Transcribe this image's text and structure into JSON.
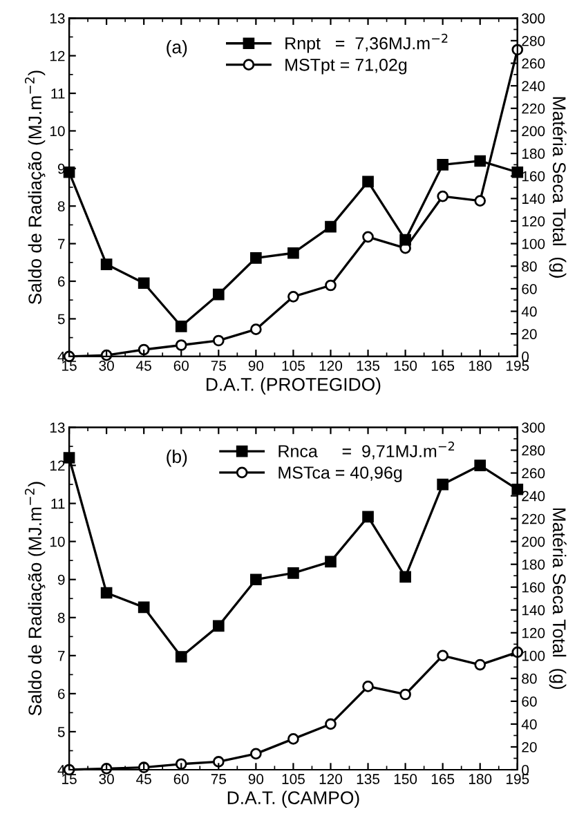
{
  "chart_data": [
    {
      "type": "line",
      "xlabel": "D.A.T. (PROTEGIDO)",
      "ylabel": "Saldo de Radiação (MJ.m$^{−2}$)",
      "y2label": "Matéria Seca Total  (g)",
      "annotations": [
        "(a)"
      ],
      "x": [
        15,
        30,
        45,
        60,
        75,
        90,
        105,
        120,
        135,
        150,
        165,
        180,
        195
      ],
      "series": [
        {
          "name": "Rnpt   =  7,36MJ.m$^{−2}$",
          "color": "#000000",
          "marker": "square",
          "values": [
            8.9,
            6.45,
            5.95,
            4.8,
            5.65,
            6.62,
            6.75,
            7.45,
            8.65,
            7.1,
            9.1,
            9.2,
            8.9
          ]
        },
        {
          "name": "MSTpt = 71,02g",
          "color": "#000000",
          "marker": "circle",
          "axis": "y2",
          "values": [
            0,
            1,
            6,
            10,
            14,
            24,
            53,
            63,
            106,
            96,
            142,
            138,
            272
          ]
        }
      ],
      "xlim": [
        15,
        195
      ],
      "xticks": [
        15,
        30,
        45,
        60,
        75,
        90,
        105,
        120,
        135,
        150,
        165,
        180,
        195
      ],
      "ylim": [
        4,
        13
      ],
      "yticks": [
        4,
        5,
        6,
        7,
        8,
        9,
        10,
        11,
        12,
        13
      ],
      "y2lim": [
        0,
        300
      ],
      "y2ticks": [
        0,
        20,
        40,
        60,
        80,
        100,
        120,
        140,
        160,
        180,
        200,
        220,
        240,
        260,
        280,
        300
      ],
      "legend": "top",
      "grid": false,
      "line_style": "solid"
    },
    {
      "type": "line",
      "xlabel": "D.A.T. (CAMPO)",
      "ylabel": "Saldo de Radiação (MJ.m$^{−2}$)",
      "y2label": "Matéria Seca Total  (g)",
      "annotations": [
        "(b)"
      ],
      "x": [
        15,
        30,
        45,
        60,
        75,
        90,
        105,
        120,
        135,
        150,
        165,
        180,
        195
      ],
      "series": [
        {
          "name": "Rnca     =  9,71MJ.m$^{−2}$",
          "color": "#000000",
          "marker": "square",
          "values": [
            12.2,
            8.65,
            8.27,
            6.97,
            7.78,
            9.0,
            9.17,
            9.47,
            10.65,
            9.07,
            11.5,
            12.0,
            11.37
          ]
        },
        {
          "name": "MSTca = 40,96g",
          "color": "#000000",
          "marker": "circle",
          "axis": "y2",
          "values": [
            0,
            1,
            2,
            5,
            7,
            14,
            27,
            40,
            73,
            66,
            100,
            92,
            103
          ]
        }
      ],
      "xlim": [
        15,
        195
      ],
      "xticks": [
        15,
        30,
        45,
        60,
        75,
        90,
        105,
        120,
        135,
        150,
        165,
        180,
        195
      ],
      "ylim": [
        4,
        13
      ],
      "yticks": [
        4,
        5,
        6,
        7,
        8,
        9,
        10,
        11,
        12,
        13
      ],
      "y2lim": [
        0,
        300
      ],
      "y2ticks": [
        0,
        20,
        40,
        60,
        80,
        100,
        120,
        140,
        160,
        180,
        200,
        220,
        240,
        260,
        280,
        300
      ],
      "legend": "top",
      "grid": false,
      "line_style": "solid"
    }
  ]
}
